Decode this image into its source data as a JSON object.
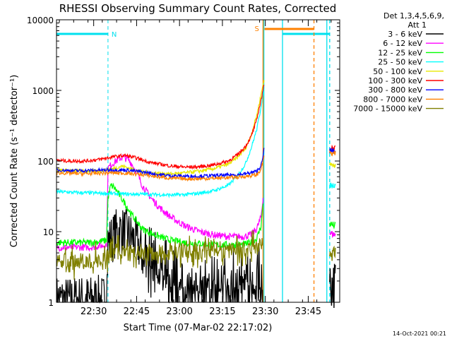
{
  "chart_data": {
    "type": "line",
    "title": "RHESSI Observing Summary Count Rates, Corrected",
    "xlabel": "Start Time (07-Mar-02 22:17:02)",
    "ylabel": "Corrected Count Rate (s⁻¹ detector⁻¹)",
    "yscale": "log",
    "ylim": [
      1,
      10000
    ],
    "xlim_minutes": [
      0,
      99
    ],
    "x_ticks": [
      {
        "minute": 13,
        "label": "22:30"
      },
      {
        "minute": 28,
        "label": "22:45"
      },
      {
        "minute": 43,
        "label": "23:00"
      },
      {
        "minute": 58,
        "label": "23:15"
      },
      {
        "minute": 73,
        "label": "23:30"
      },
      {
        "minute": 88,
        "label": "23:45"
      }
    ],
    "y_ticks": [
      {
        "value": 1,
        "label": "1"
      },
      {
        "value": 10,
        "label": "10"
      },
      {
        "value": 100,
        "label": "100"
      },
      {
        "value": 1000,
        "label": "1000"
      },
      {
        "value": 10000,
        "label": "10000"
      }
    ],
    "legend_header": [
      "Det 1,3,4,5,6,9,",
      "Att 1"
    ],
    "legend_position": "right",
    "night": {
      "label": "N",
      "start": 0,
      "end": 18,
      "color": "#00e0ee"
    },
    "saa": {
      "label": "S",
      "start": 72.2,
      "end": 90,
      "color": "#ff8000"
    },
    "gaps": [
      {
        "start": 72.5,
        "end": 79,
        "color": "#00e0ee"
      },
      {
        "start": 94.5,
        "end": 95.5,
        "color": "#00e0ee"
      }
    ],
    "series": [
      {
        "name": "3 - 6 keV",
        "color": "#000000",
        "x": [
          0,
          4,
          8,
          12,
          17.5,
          18,
          20,
          21,
          22,
          24,
          26,
          28,
          29,
          30,
          32,
          34,
          36,
          40,
          45,
          50,
          55,
          60,
          65,
          70,
          72
        ],
        "y": [
          1.1,
          1.05,
          1.1,
          1.1,
          1.1,
          7,
          8.5,
          10,
          10.5,
          10,
          8.5,
          7,
          6,
          4.5,
          3,
          2.2,
          1.8,
          1.5,
          1.3,
          1.2,
          1.2,
          1.2,
          1.2,
          1.3,
          1.5
        ],
        "after": {
          "x": [
            95.5,
            97.5
          ],
          "y": [
            1.8,
            1.8
          ]
        }
      },
      {
        "name": "6 - 12 keV",
        "color": "#ff00ff",
        "x": [
          0,
          4,
          8,
          12,
          17.5,
          18,
          20,
          22,
          23,
          24,
          25,
          26,
          28,
          30,
          33,
          36,
          40,
          45,
          50,
          55,
          60,
          65,
          68,
          70,
          71.5,
          72.2
        ],
        "y": [
          6,
          6,
          6,
          6,
          6.5,
          80,
          95,
          108,
          113,
          110,
          105,
          95,
          70,
          45,
          30,
          22,
          16,
          12,
          10,
          9,
          8.5,
          8.5,
          9,
          11,
          16,
          30
        ],
        "after": {
          "x": [
            95.5,
            97.5
          ],
          "y": [
            9.5,
            9
          ]
        }
      },
      {
        "name": "12 - 25 keV",
        "color": "#00ff00",
        "x": [
          0,
          4,
          8,
          12,
          17.5,
          18,
          19,
          20,
          21,
          22,
          24,
          26,
          28,
          30,
          33,
          36,
          40,
          45,
          50,
          55,
          60,
          65,
          68,
          70,
          71.5,
          72.2
        ],
        "y": [
          7,
          7,
          7,
          7,
          7.5,
          30,
          45,
          43,
          38,
          33,
          25,
          18,
          14,
          11,
          9.5,
          8.5,
          7.5,
          7,
          6.8,
          6.5,
          6.5,
          6.5,
          7,
          8,
          12,
          25
        ],
        "after": {
          "x": [
            95.5,
            97.5
          ],
          "y": [
            13,
            12
          ]
        }
      },
      {
        "name": "25 - 50 keV",
        "color": "#00ffff",
        "x": [
          0,
          5,
          10,
          15,
          20,
          25,
          30,
          35,
          40,
          45,
          50,
          55,
          60,
          63,
          66,
          68,
          70,
          71,
          72,
          72.5
        ],
        "y": [
          37,
          36,
          35.5,
          35,
          34.5,
          34,
          34,
          33.5,
          33,
          33.5,
          35,
          38,
          45,
          60,
          90,
          150,
          280,
          450,
          800,
          1050
        ],
        "after": {
          "x": [
            95.5,
            97.5
          ],
          "y": [
            45,
            46
          ]
        }
      },
      {
        "name": "50 - 100 keV",
        "color": "#e8e800",
        "x": [
          0,
          5,
          10,
          15,
          20,
          23,
          25,
          30,
          35,
          40,
          45,
          50,
          55,
          60,
          63,
          66,
          68,
          70,
          71,
          72,
          72.5
        ],
        "y": [
          75,
          73,
          72,
          72,
          78,
          85,
          80,
          70,
          67,
          66,
          68,
          72,
          78,
          90,
          110,
          150,
          230,
          450,
          700,
          1100,
          1400
        ],
        "after": {
          "x": [
            95.5,
            97.5
          ],
          "y": [
            88,
            90
          ]
        }
      },
      {
        "name": "100 - 300 keV",
        "color": "#ff0000",
        "x": [
          0,
          5,
          10,
          15,
          20,
          24,
          28,
          33,
          40,
          45,
          50,
          55,
          60,
          63,
          66,
          68,
          70,
          71,
          72,
          72.5
        ],
        "y": [
          102,
          100,
          100,
          105,
          115,
          120,
          110,
          95,
          85,
          82,
          83,
          88,
          100,
          120,
          160,
          220,
          380,
          600,
          900,
          1200
        ],
        "after": {
          "x": [
            95.5,
            97.5
          ],
          "y": [
            155,
            150
          ]
        }
      },
      {
        "name": "300 - 800 keV",
        "color": "#0000ff",
        "x": [
          0,
          5,
          10,
          15,
          20,
          25,
          30,
          35,
          40,
          45,
          50,
          55,
          60,
          65,
          68,
          70,
          71,
          72,
          72.5
        ],
        "y": [
          75,
          73,
          73,
          74,
          75,
          74,
          70,
          65,
          62,
          61,
          61,
          62,
          63,
          65,
          68,
          72,
          80,
          100,
          150
        ],
        "after": {
          "x": [
            95.5,
            97.5
          ],
          "y": [
            140,
            135
          ]
        }
      },
      {
        "name": "800 - 7000 keV",
        "color": "#ff8000",
        "x": [
          0,
          5,
          10,
          15,
          20,
          25,
          30,
          35,
          40,
          45,
          50,
          55,
          60,
          65,
          68,
          70,
          71,
          72,
          72.5
        ],
        "y": [
          68,
          67,
          66,
          67,
          68,
          67,
          64,
          60,
          57,
          56,
          56,
          57,
          58,
          60,
          62,
          64,
          70,
          90,
          120
        ],
        "after": {
          "x": [
            95.5,
            97.5
          ],
          "y": [
            128,
            125
          ]
        }
      },
      {
        "name": "7000 - 15000 keV",
        "color": "#808000",
        "x": [
          0,
          5,
          8,
          10,
          12,
          15,
          18,
          20,
          22,
          25,
          28,
          32,
          36,
          40,
          45,
          50,
          55,
          60,
          65,
          68,
          70,
          72
        ],
        "y": [
          3.5,
          3.5,
          3.8,
          3.6,
          4,
          4.2,
          4.5,
          5.5,
          5.5,
          5,
          5.2,
          5,
          5,
          5.2,
          5.3,
          5.3,
          5.5,
          5.5,
          5.5,
          5.8,
          6,
          7
        ],
        "after": {
          "x": [
            95.5,
            97.5
          ],
          "y": [
            5,
            4.5
          ]
        }
      }
    ]
  },
  "timestamp": "14-Oct-2021 00:21"
}
